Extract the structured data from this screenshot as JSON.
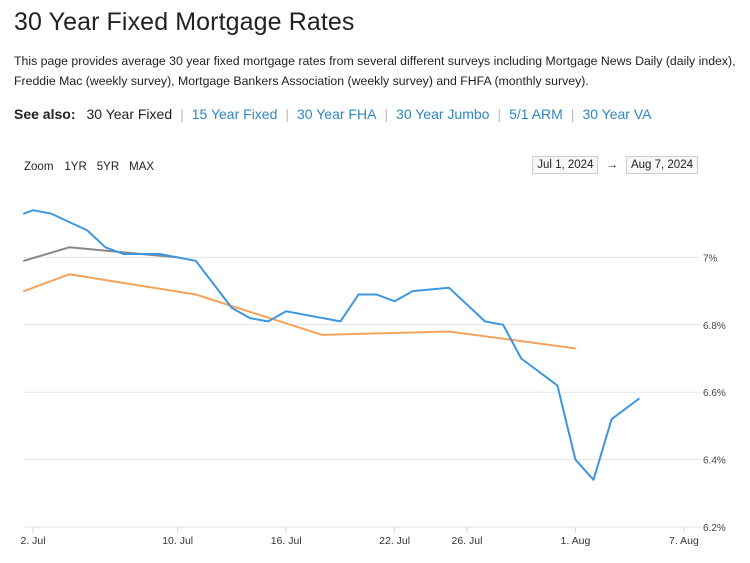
{
  "page": {
    "title": "30 Year Fixed Mortgage Rates",
    "description": "This page provides average 30 year fixed mortgage rates from several different surveys including Mortgage News Daily (daily index), Freddie Mac (weekly survey), Mortgage Bankers Association (weekly survey) and FHFA (monthly survey)."
  },
  "see_also": {
    "label": "See also:",
    "links": [
      {
        "label": "30 Year Fixed",
        "current": true
      },
      {
        "label": "15 Year Fixed",
        "current": false
      },
      {
        "label": "30 Year FHA",
        "current": false
      },
      {
        "label": "30 Year Jumbo",
        "current": false
      },
      {
        "label": "5/1 ARM",
        "current": false
      },
      {
        "label": "30 Year VA",
        "current": false
      }
    ]
  },
  "zoom": {
    "label": "Zoom",
    "buttons": [
      "1YR",
      "5YR",
      "MAX"
    ]
  },
  "range": {
    "from": "Jul 1, 2024",
    "to": "Aug 7, 2024",
    "arrow": "→"
  },
  "colors": {
    "mnd": "#3d97e0",
    "freddie": "#f4a35d",
    "mba": "#888888",
    "grid": "#e6e6e6",
    "link": "#2f86c4"
  },
  "chart_data": {
    "type": "line",
    "x_ticks": [
      {
        "day": 2,
        "label": "2. Jul"
      },
      {
        "day": 10,
        "label": "10. Jul"
      },
      {
        "day": 16,
        "label": "16. Jul"
      },
      {
        "day": 22,
        "label": "22. Jul"
      },
      {
        "day": 26,
        "label": "26. Jul"
      },
      {
        "day": 32,
        "label": "1. Aug"
      },
      {
        "day": 38,
        "label": "7. Aug"
      }
    ],
    "y_ticks": [
      6.2,
      6.4,
      6.6,
      6.8,
      7.0
    ],
    "y_tick_labels": [
      "6.2%",
      "6.4%",
      "6.6%",
      "6.8%",
      "7%"
    ],
    "ylim": [
      6.2,
      7.2
    ],
    "xlim": [
      1.5,
      39.0
    ],
    "series": [
      {
        "key": "mnd",
        "points": [
          [
            1.5,
            7.13
          ],
          [
            2,
            7.14
          ],
          [
            3,
            7.13
          ],
          [
            5,
            7.08
          ],
          [
            6,
            7.03
          ],
          [
            7,
            7.01
          ],
          [
            8,
            7.01
          ],
          [
            9,
            7.01
          ],
          [
            11,
            6.99
          ],
          [
            12,
            6.92
          ],
          [
            13,
            6.85
          ],
          [
            14,
            6.82
          ],
          [
            15,
            6.81
          ],
          [
            16,
            6.84
          ],
          [
            19,
            6.81
          ],
          [
            20,
            6.89
          ],
          [
            21,
            6.89
          ],
          [
            22,
            6.87
          ],
          [
            23,
            6.9
          ],
          [
            25,
            6.91
          ],
          [
            27,
            6.81
          ],
          [
            28,
            6.8
          ],
          [
            29,
            6.7
          ],
          [
            31,
            6.62
          ],
          [
            32,
            6.4
          ],
          [
            33,
            6.34
          ],
          [
            34,
            6.52
          ],
          [
            35.5,
            6.58
          ]
        ]
      },
      {
        "key": "freddie",
        "points": [
          [
            1.5,
            6.9
          ],
          [
            4,
            6.95
          ],
          [
            11,
            6.89
          ],
          [
            18,
            6.77
          ],
          [
            25,
            6.78
          ],
          [
            32,
            6.73
          ]
        ]
      },
      {
        "key": "mba",
        "points": [
          [
            1.5,
            6.99
          ],
          [
            4,
            7.03
          ],
          [
            10,
            7.0
          ]
        ]
      }
    ]
  }
}
